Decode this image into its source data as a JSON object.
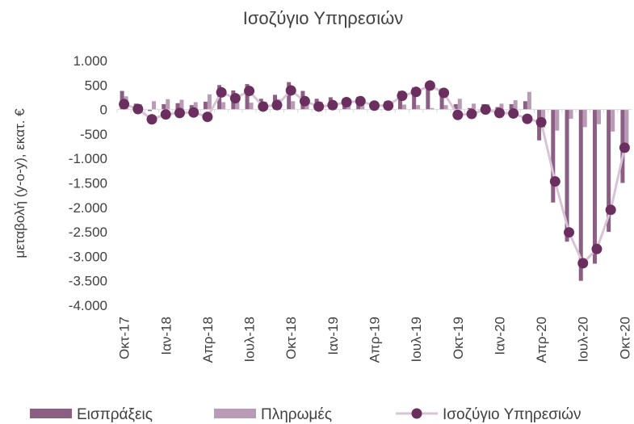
{
  "chart_data": {
    "type": "bar-line",
    "title": "Ισοζύγιο Υπηρεσιών",
    "y_label": "μεταβολή (y-o-y), εκατ. €",
    "categories": [
      "Οκτ-17",
      null,
      null,
      "Ιαν-18",
      null,
      null,
      "Απρ-18",
      null,
      null,
      "Ιουλ-18",
      null,
      null,
      "Οκτ-18",
      null,
      null,
      "Ιαν-19",
      null,
      null,
      "Απρ-19",
      null,
      null,
      "Ιουλ-19",
      null,
      null,
      "Οκτ-19",
      null,
      null,
      "Ιαν-20",
      null,
      null,
      "Απρ-20",
      null,
      null,
      "Ιουλ-20",
      null,
      null,
      "Οκτ-20"
    ],
    "series": [
      {
        "name": "Εισπράξεις",
        "type": "bar",
        "color": "#8b5e83",
        "values": [
          380,
          120,
          -30,
          110,
          130,
          90,
          160,
          500,
          390,
          520,
          220,
          300,
          560,
          380,
          220,
          250,
          230,
          260,
          120,
          170,
          380,
          450,
          520,
          430,
          110,
          30,
          110,
          50,
          110,
          170,
          -630,
          -1900,
          -2700,
          -3500,
          -3150,
          -2500,
          -1500
        ]
      },
      {
        "name": "Πληρωμές",
        "type": "bar",
        "color": "#b99bb5",
        "values": [
          270,
          110,
          170,
          210,
          200,
          150,
          310,
          150,
          160,
          140,
          160,
          210,
          170,
          210,
          160,
          160,
          80,
          90,
          40,
          90,
          100,
          90,
          30,
          90,
          220,
          120,
          110,
          120,
          190,
          360,
          -370,
          -430,
          -190,
          -360,
          -300,
          -450,
          -720
        ]
      },
      {
        "name": "Ισοζύγιο Υπηρεσιών",
        "type": "line",
        "color": "#d9c3d6",
        "marker_color": "#6b2f5f",
        "values": [
          110,
          10,
          -200,
          -100,
          -70,
          -60,
          -150,
          350,
          230,
          380,
          60,
          90,
          390,
          170,
          60,
          90,
          150,
          170,
          80,
          80,
          280,
          360,
          490,
          340,
          -110,
          -90,
          0,
          -70,
          -80,
          -190,
          -260,
          -1470,
          -2510,
          -3140,
          -2850,
          -2050,
          -780
        ]
      }
    ],
    "ylim": [
      -4000,
      1000
    ],
    "yticks": [
      {
        "value": 1000,
        "label": "1.000"
      },
      500,
      0,
      -500,
      {
        "value": -1000,
        "label": "-1.000"
      },
      {
        "value": -1500,
        "label": "-1.500"
      },
      {
        "value": -2000,
        "label": "-2.000"
      },
      {
        "value": -2500,
        "label": "-2.500"
      },
      {
        "value": -3000,
        "label": "-3.000"
      },
      {
        "value": -3500,
        "label": "-3.500"
      },
      {
        "value": -4000,
        "label": "-4.000"
      }
    ],
    "legend": "bottom"
  }
}
